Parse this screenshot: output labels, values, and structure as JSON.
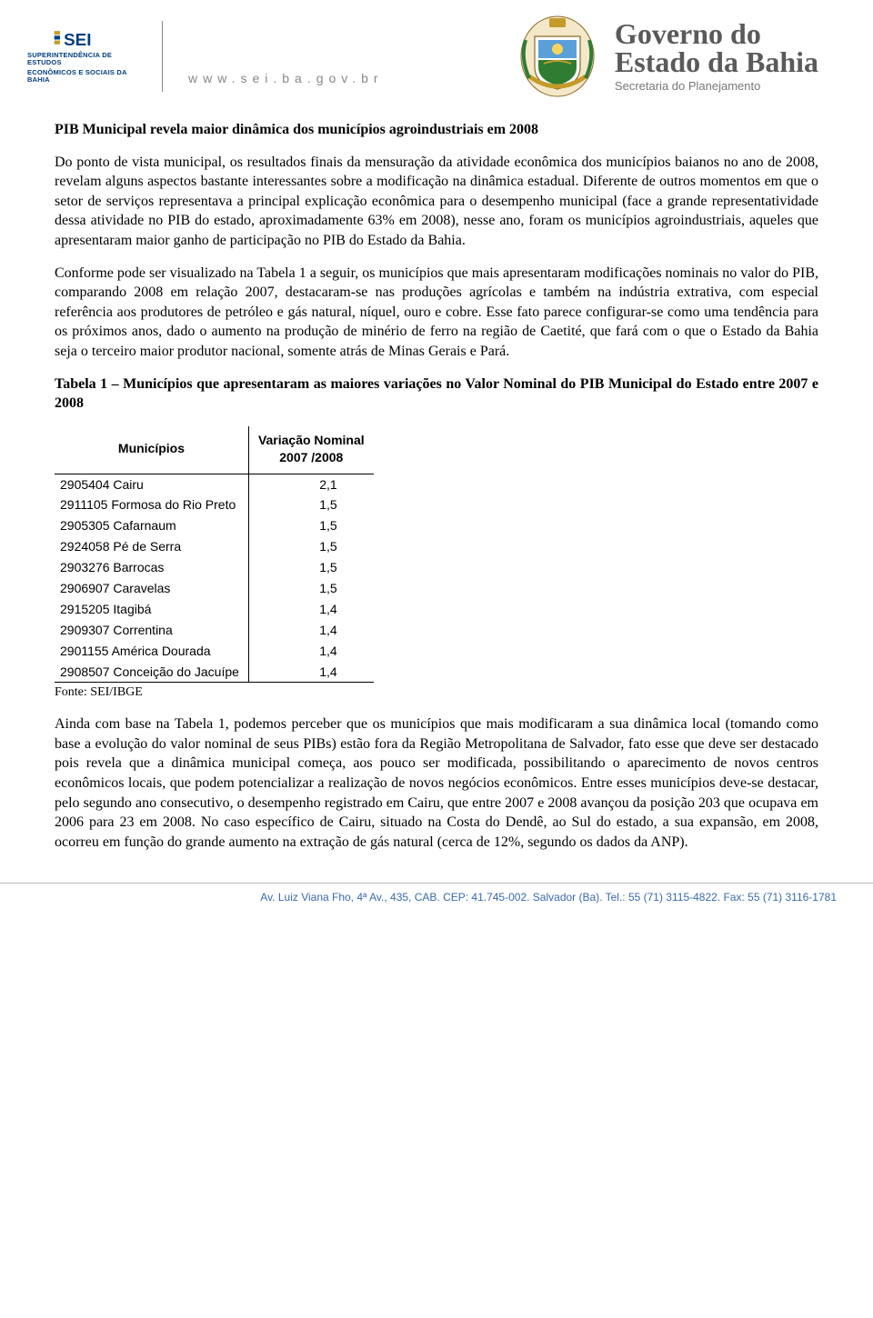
{
  "header": {
    "sei_sub_line1": "SUPERINTENDÊNCIA DE ESTUDOS",
    "sei_sub_line2": "ECONÔMICOS E SOCIAIS DA BAHIA",
    "url": "www.sei.ba.gov.br",
    "gov_line1": "Governo do",
    "gov_line2": "Estado da Bahia",
    "gov_sub": "Secretaria do Planejamento",
    "colors": {
      "sei_blue": "#003e7e",
      "sei_gold": "#c49a2a",
      "url_gray": "#888888",
      "gov_gray": "#5a5a5a",
      "footer_blue": "#3a6aa8"
    }
  },
  "doc": {
    "title": "PIB Municipal revela maior dinâmica dos municípios agroindustriais em 2008",
    "p1": "Do ponto de vista municipal, os resultados finais da mensuração da atividade econômica dos municípios baianos no ano de 2008, revelam alguns aspectos bastante interessantes sobre a modificação na dinâmica estadual. Diferente de outros momentos em que o setor de serviços representava a principal explicação econômica para o desempenho municipal (face a grande representatividade dessa atividade no PIB do estado, aproximadamente 63% em 2008), nesse ano, foram os municípios agroindustriais, aqueles que apresentaram maior ganho de participação no PIB do Estado da Bahia.",
    "p2": "Conforme pode ser visualizado na Tabela 1 a seguir, os municípios que mais apresentaram modificações nominais no valor do PIB, comparando 2008 em relação 2007, destacaram-se nas produções agrícolas e também na indústria extrativa, com especial referência aos produtores de petróleo e gás natural, níquel, ouro e cobre. Esse fato parece configurar-se como uma tendência para os próximos anos, dado o aumento na produção de minério de ferro na região de Caetité, que fará com o que o Estado da Bahia seja o terceiro maior produtor nacional, somente atrás de Minas Gerais e Pará.",
    "table_caption": "Tabela 1 – Municípios que apresentaram as maiores variações no Valor Nominal do PIB Municipal do Estado entre 2007 e 2008",
    "source": "Fonte: SEI/IBGE",
    "p3": "Ainda com base na Tabela 1, podemos perceber que os municípios que mais modificaram a sua dinâmica local (tomando como base a evolução do valor nominal de seus PIBs) estão fora da Região Metropolitana de Salvador, fato esse que deve ser destacado pois revela que a dinâmica municipal começa, aos pouco ser modificada, possibilitando o aparecimento de novos centros econômicos locais, que podem potencializar a realização de novos negócios econômicos. Entre esses municípios deve-se destacar, pelo segundo ano consecutivo, o desempenho registrado em Cairu, que entre 2007 e 2008 avançou da posição 203 que ocupava em 2006 para 23 em 2008. No caso específico de Cairu, situado na Costa do Dendê, ao Sul do estado, a sua expansão, em 2008, ocorreu em função do grande aumento na extração de gás natural (cerca de 12%, segundo os dados da ANP)."
  },
  "table": {
    "type": "table",
    "col1_header": "Municípios",
    "col2_header_line1": "Variação Nominal",
    "col2_header_line2": "2007 /2008",
    "font_family": "Arial",
    "font_size_pt": 11,
    "border_color": "#000000",
    "rows": [
      {
        "code": "2905404",
        "name": "Cairu",
        "value": "2,1"
      },
      {
        "code": "2911105",
        "name": "Formosa do Rio Preto",
        "value": "1,5"
      },
      {
        "code": "2905305",
        "name": "Cafarnaum",
        "value": "1,5"
      },
      {
        "code": "2924058",
        "name": "Pé de Serra",
        "value": "1,5"
      },
      {
        "code": "2903276",
        "name": "Barrocas",
        "value": "1,5"
      },
      {
        "code": "2906907",
        "name": "Caravelas",
        "value": "1,5"
      },
      {
        "code": "2915205",
        "name": "Itagibá",
        "value": "1,4"
      },
      {
        "code": "2909307",
        "name": "Correntina",
        "value": "1,4"
      },
      {
        "code": "2901155",
        "name": "América Dourada",
        "value": "1,4"
      },
      {
        "code": "2908507",
        "name": "Conceição do Jacuípe",
        "value": "1,4"
      }
    ]
  },
  "footer": {
    "text": "Av. Luiz Viana Fho, 4ª Av., 435, CAB. CEP: 41.745-002. Salvador (Ba). Tel.: 55 (71) 3115-4822. Fax: 55 (71) 3116-1781"
  }
}
